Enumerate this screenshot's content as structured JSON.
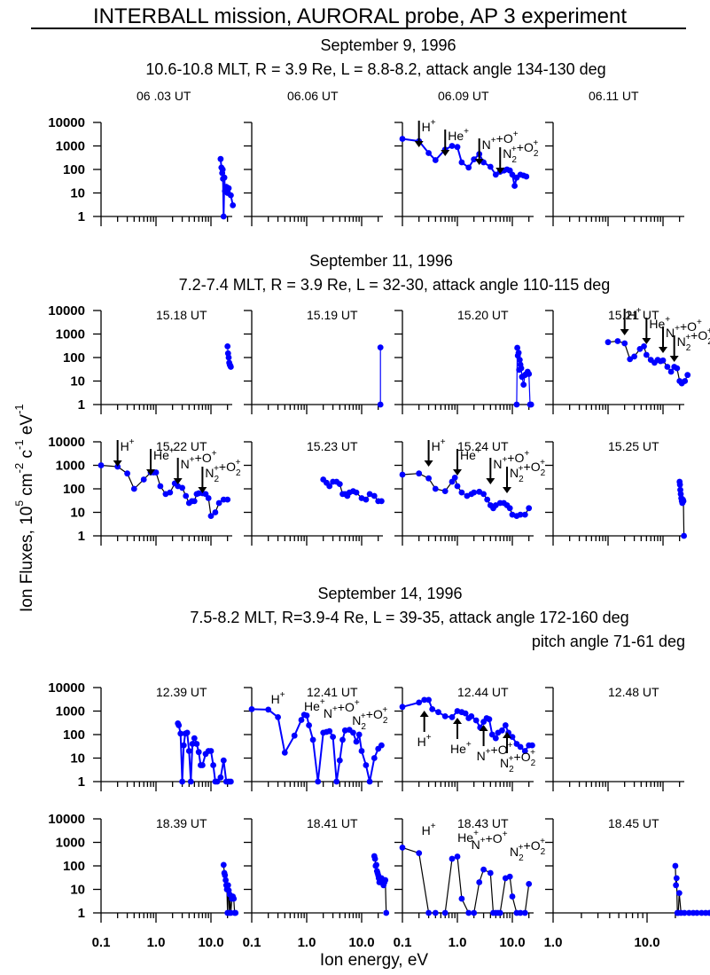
{
  "title": "INTERBALL mission,  AURORAL probe, AP 3 experiment",
  "ylabel_parts": [
    "Ion Fluxes,  10",
    "5",
    " cm",
    "-2",
    " c",
    "-1",
    " eV",
    "-1"
  ],
  "xlabel": "Ion energy, eV",
  "colors": {
    "series": "#0000ff",
    "axis": "#000000",
    "arrow": "#000000"
  },
  "y_ticks": [
    "1",
    "10",
    "100",
    "1000",
    "10000"
  ],
  "x_ticks_default": [
    "0.1",
    "1.0",
    "10.0"
  ],
  "sections": [
    {
      "date": "September 9, 1996",
      "info": "10.6-10.8 MLT,  R = 3.9 Re,  L = 8.8-8.2, attack angle 134-130 deg",
      "info2": ""
    },
    {
      "date": "September 11, 1996",
      "info": "7.2-7.4 MLT,  R = 3.9 Re,  L = 32-30,  attack angle 110-115 deg",
      "info2": ""
    },
    {
      "date": "September 14, 1996",
      "info": "7.5-8.2 MLT,  R=3.9-4 Re, L = 39-35,  attack angle 172-160 deg",
      "info2": "pitch angle 71-61 deg"
    }
  ],
  "chart_data": {
    "type": "scatter",
    "xscale": "log",
    "yscale": "log",
    "xlim": [
      0.1,
      30
    ],
    "ylim": [
      1,
      10000
    ],
    "xlabel": "Ion energy, eV",
    "ylabel": "Ion Fluxes, 10^5 cm^-2 c^-1 eV^-1",
    "panels": [
      {
        "label": "06 .03 UT",
        "row": 0,
        "col": 0,
        "x": [
          15,
          15.5,
          16,
          16.3,
          16.6,
          17,
          17.5,
          18,
          19,
          20,
          21,
          23,
          25
        ],
        "y": [
          280,
          120,
          70,
          100,
          40,
          1,
          45,
          12,
          18,
          10,
          16,
          8,
          3
        ]
      },
      {
        "label": "06.06 UT",
        "row": 0,
        "col": 1,
        "x": [],
        "y": []
      },
      {
        "label": "06.09 UT",
        "row": 0,
        "col": 2,
        "x": [
          0.1,
          0.2,
          0.3,
          0.4,
          0.6,
          0.8,
          1.0,
          1.2,
          1.6,
          2.0,
          2.5,
          3.0,
          4.0,
          5.0,
          6.0,
          7.0,
          8.0,
          9.0,
          10,
          11,
          12,
          14,
          16,
          18
        ],
        "y": [
          2000,
          1600,
          500,
          250,
          700,
          1000,
          900,
          200,
          120,
          270,
          450,
          200,
          130,
          60,
          80,
          90,
          100,
          90,
          60,
          20,
          45,
          60,
          55,
          50
        ],
        "annotations": [
          {
            "text": "H+",
            "x": 0.2,
            "dir": "down"
          },
          {
            "text": "He+",
            "x": 0.6,
            "dir": "down"
          },
          {
            "text": "N+ + O+",
            "x": 2.5,
            "dir": "down"
          },
          {
            "text": "N2+ + O2+",
            "x": 6.0,
            "dir": "down"
          }
        ]
      },
      {
        "label": "06.11 UT",
        "row": 0,
        "col": 3,
        "x": [],
        "y": []
      },
      {
        "label": "15.18 UT",
        "row": 1,
        "col": 0,
        "x": [
          20,
          20.5,
          21,
          21.5,
          22,
          22.5,
          23
        ],
        "y": [
          300,
          150,
          100,
          60,
          50,
          45,
          40
        ]
      },
      {
        "label": "15.19 UT",
        "row": 1,
        "col": 1,
        "x": [
          22,
          22
        ],
        "y": [
          1,
          270
        ]
      },
      {
        "label": "15.20 UT",
        "row": 1,
        "col": 2,
        "x": [
          12,
          12.3,
          12.6,
          13,
          13.3,
          13.6,
          14,
          14.5,
          15,
          16,
          17,
          18,
          19,
          20,
          21,
          22
        ],
        "y": [
          1,
          260,
          120,
          160,
          30,
          80,
          50,
          35,
          15,
          7,
          18,
          20,
          25,
          20,
          1,
          1
        ]
      },
      {
        "label": "15.21 UT",
        "row": 1,
        "col": 3,
        "x": [
          1.0,
          1.5,
          2.0,
          2.5,
          3.0,
          3.8,
          4.5,
          5.0,
          6.0,
          7.0,
          8.0,
          9.0,
          10,
          12,
          14,
          16,
          18,
          20,
          22,
          25,
          28
        ],
        "y": [
          450,
          500,
          400,
          85,
          110,
          230,
          300,
          130,
          80,
          60,
          80,
          70,
          75,
          40,
          25,
          40,
          35,
          10,
          8,
          10,
          18
        ],
        "annotations": [
          {
            "text": "H+",
            "x": 2.0,
            "dir": "down"
          },
          {
            "text": "He+",
            "x": 5.0,
            "dir": "down"
          },
          {
            "text": "N+ + O+",
            "x": 10,
            "dir": "down"
          },
          {
            "text": "N2+ + O2+",
            "x": 16,
            "dir": "down"
          }
        ]
      },
      {
        "label": "15.22 UT",
        "row": 2,
        "col": 0,
        "x": [
          0.1,
          0.2,
          0.3,
          0.4,
          0.6,
          0.8,
          0.9,
          1.0,
          1.2,
          1.5,
          1.8,
          2.2,
          2.5,
          3.0,
          3.5,
          4.0,
          4.5,
          5.0,
          5.5,
          6.0,
          7.0,
          8.0,
          9.0,
          10,
          12,
          14,
          17,
          20
        ],
        "y": [
          1000,
          880,
          450,
          100,
          250,
          500,
          500,
          500,
          130,
          60,
          70,
          170,
          130,
          110,
          50,
          25,
          30,
          30,
          60,
          65,
          65,
          60,
          40,
          7,
          10,
          25,
          35,
          35
        ],
        "annotations": [
          {
            "text": "H+",
            "x": 0.2,
            "dir": "down"
          },
          {
            "text": "He+",
            "x": 0.8,
            "dir": "down"
          },
          {
            "text": "N+ + O+",
            "x": 2.5,
            "dir": "down"
          },
          {
            "text": "N2+ + O2+",
            "x": 7.0,
            "dir": "down"
          }
        ]
      },
      {
        "label": "15.23 UT",
        "row": 2,
        "col": 1,
        "x": [
          2.0,
          2.3,
          2.6,
          3.0,
          3.5,
          4.0,
          4.5,
          5.0,
          5.5,
          6.0,
          7.0,
          8.0,
          10,
          12,
          14,
          17,
          20,
          23
        ],
        "y": [
          250,
          180,
          130,
          200,
          200,
          160,
          60,
          60,
          50,
          70,
          80,
          70,
          40,
          35,
          60,
          50,
          30,
          30
        ]
      },
      {
        "label": "15.24 UT",
        "row": 2,
        "col": 2,
        "x": [
          0.1,
          0.2,
          0.3,
          0.4,
          0.6,
          0.8,
          0.9,
          1.0,
          1.2,
          1.5,
          1.8,
          2.0,
          2.5,
          3.0,
          3.5,
          4.0,
          4.5,
          5.0,
          6.0,
          7.0,
          8.0,
          9.0,
          10,
          12,
          14,
          17,
          20
        ],
        "y": [
          400,
          450,
          280,
          100,
          80,
          200,
          300,
          130,
          70,
          50,
          60,
          70,
          75,
          60,
          35,
          20,
          15,
          20,
          25,
          25,
          20,
          15,
          8,
          7,
          8,
          8,
          15
        ],
        "annotations": [
          {
            "text": "H+",
            "x": 0.3,
            "dir": "down"
          },
          {
            "text": "He+",
            "x": 1.0,
            "dir": "down"
          },
          {
            "text": "N+ + O+",
            "x": 4.0,
            "dir": "down"
          },
          {
            "text": "N2+ + O2+",
            "x": 8.0,
            "dir": "down"
          }
        ]
      },
      {
        "label": "15.25 UT",
        "row": 2,
        "col": 3,
        "x": [
          20,
          20.3,
          20.6,
          21,
          21.5,
          22,
          22.5,
          23,
          23.5,
          24
        ],
        "y": [
          200,
          150,
          90,
          60,
          40,
          30,
          25,
          35,
          30,
          1
        ]
      },
      {
        "label": "12.39 UT",
        "row": 3,
        "col": 0,
        "x": [
          2.5,
          2.6,
          2.8,
          3.0,
          3.2,
          3.4,
          3.7,
          4.0,
          4.3,
          4.6,
          5.0,
          5.5,
          6.0,
          6.5,
          7.0,
          8.0,
          9.0,
          10,
          11,
          12,
          13,
          15,
          17,
          19,
          21,
          23
        ],
        "y": [
          300,
          250,
          110,
          1,
          35,
          110,
          120,
          20,
          1,
          40,
          70,
          40,
          18,
          5,
          5,
          15,
          20,
          20,
          5,
          1,
          1,
          1.5,
          8,
          1,
          1,
          1
        ]
      },
      {
        "label": "12.41 UT",
        "row": 3,
        "col": 1,
        "x": [
          0.1,
          0.2,
          0.3,
          0.4,
          0.6,
          0.8,
          0.9,
          1.0,
          1.1,
          1.3,
          1.6,
          2.0,
          2.3,
          2.6,
          3.0,
          3.5,
          4.0,
          4.5,
          5.0,
          6.0,
          7.0,
          8.0,
          9.0,
          10,
          12,
          14,
          17,
          20,
          23
        ],
        "y": [
          1200,
          1150,
          550,
          17,
          90,
          420,
          700,
          650,
          250,
          60,
          1,
          120,
          130,
          140,
          80,
          1,
          8,
          60,
          150,
          160,
          120,
          50,
          100,
          20,
          5,
          1,
          10,
          25,
          35
        ],
        "annotations": [
          {
            "text": "H+",
            "x": 0.2,
            "dir": "none"
          },
          {
            "text": "He+",
            "x": 0.8,
            "dir": "none"
          },
          {
            "text": "N+ + O+",
            "x": 1.8,
            "dir": "none"
          },
          {
            "text": "N2+ + O2+",
            "x": 6.0,
            "dir": "none"
          }
        ]
      },
      {
        "label": "12.44 UT",
        "row": 3,
        "col": 2,
        "x": [
          0.1,
          0.2,
          0.25,
          0.3,
          0.35,
          0.45,
          0.6,
          0.8,
          1.0,
          1.2,
          1.4,
          1.6,
          1.8,
          2.2,
          2.6,
          3.0,
          3.4,
          3.8,
          4.3,
          5.0,
          5.5,
          6.5,
          7.5,
          8.5,
          10,
          12,
          14,
          17,
          20,
          23
        ],
        "y": [
          1500,
          2300,
          3000,
          3000,
          1200,
          900,
          600,
          550,
          1000,
          900,
          800,
          500,
          600,
          400,
          200,
          350,
          500,
          450,
          100,
          70,
          120,
          150,
          250,
          120,
          80,
          40,
          30,
          20,
          35,
          35
        ],
        "annotations": [
          {
            "text": "H+",
            "x": 0.25,
            "dir": "up"
          },
          {
            "text": "He+",
            "x": 1.0,
            "dir": "up"
          },
          {
            "text": "N+ + O+",
            "x": 3.0,
            "dir": "up"
          },
          {
            "text": "N2+ + O2+",
            "x": 8.0,
            "dir": "up"
          }
        ]
      },
      {
        "label": "12.48 UT",
        "row": 3,
        "col": 3,
        "x": [],
        "y": []
      },
      {
        "label": "18.39 UT",
        "row": 4,
        "col": 0,
        "x": [
          17,
          17.5,
          18,
          18.5,
          19,
          19.5,
          20,
          20.5,
          21,
          21.5,
          22,
          23,
          24,
          25,
          26,
          27,
          28
        ],
        "y": [
          110,
          50,
          40,
          25,
          15,
          10,
          1,
          15,
          9,
          1,
          6,
          1,
          4,
          5,
          4,
          1,
          1
        ]
      },
      {
        "label": "18.41 UT",
        "row": 4,
        "col": 1,
        "x": [
          17,
          17.5,
          18,
          18.5,
          19,
          19.5,
          20,
          20.5,
          21,
          22,
          23,
          24,
          25,
          26,
          27,
          28
        ],
        "y": [
          260,
          200,
          100,
          110,
          60,
          50,
          40,
          30,
          20,
          22,
          30,
          20,
          15,
          20,
          25,
          1
        ]
      },
      {
        "label": "18.43 UT",
        "row": 4,
        "col": 2,
        "x": [
          0.1,
          0.2,
          0.3,
          0.4,
          0.6,
          0.8,
          1.0,
          1.2,
          1.6,
          2.0,
          2.5,
          3.0,
          4.0,
          4.5,
          5.0,
          5.5,
          6.0,
          7.5,
          9.0,
          10,
          12,
          14,
          17,
          20
        ],
        "y": [
          600,
          350,
          1,
          1,
          1,
          200,
          250,
          4,
          1,
          1,
          20,
          70,
          50,
          1,
          1,
          1,
          1,
          30,
          35,
          5,
          1,
          1,
          1,
          17
        ],
        "annotations": [
          {
            "text": "H+",
            "x": 0.2,
            "dir": "none"
          },
          {
            "text": "He+",
            "x": 0.9,
            "dir": "none"
          },
          {
            "text": "N+ + O+",
            "x": 1.6,
            "dir": "none"
          },
          {
            "text": "N2+ + O2+",
            "x": 8.0,
            "dir": "none"
          }
        ]
      },
      {
        "label": "18.45 UT",
        "row": 4,
        "col": 3,
        "xlim": [
          1.0,
          60
        ],
        "x_ticks": [
          "1.0",
          "10.0"
        ],
        "x": [
          20,
          20.3,
          20.6,
          21,
          21.5,
          22,
          23,
          25,
          28,
          31,
          34,
          38,
          42,
          46,
          50,
          55
        ],
        "y": [
          100,
          15,
          30,
          1,
          1,
          7,
          1,
          1,
          1,
          1,
          1,
          1,
          1,
          1,
          1,
          1
        ]
      }
    ]
  }
}
